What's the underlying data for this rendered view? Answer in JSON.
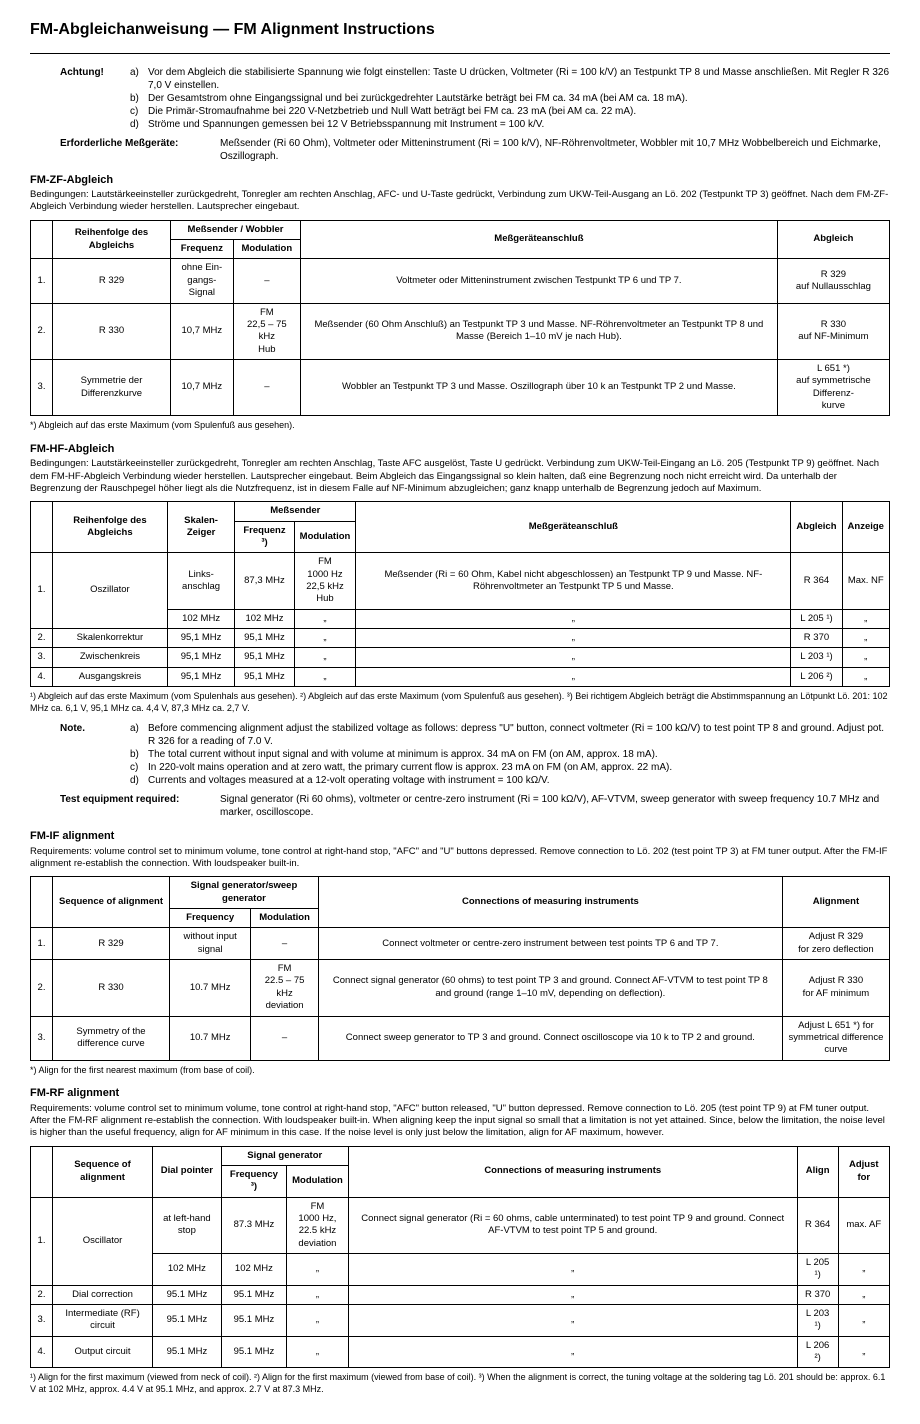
{
  "title": "FM-Abgleichanweisung — FM Alignment Instructions",
  "de": {
    "achtung_label": "Achtung!",
    "achtung": [
      "Vor dem Abgleich die stabilisierte Spannung wie folgt einstellen: Taste U drücken, Voltmeter (Ri = 100 k/V) an Testpunkt TP 8 und Masse anschließen. Mit Regler R 326 7,0 V einstellen.",
      "Der Gesamtstrom ohne Eingangssignal und bei zurückgedrehter Lautstärke beträgt bei FM ca. 34 mA (bei AM ca. 18 mA).",
      "Die Primär-Stromaufnahme bei 220 V-Netzbetrieb und Null Watt beträgt bei FM ca. 23 mA (bei AM ca. 22 mA).",
      "Ströme und Spannungen gemessen bei 12 V Betriebsspannung mit Instrument = 100 k/V."
    ],
    "equip_label": "Erforderliche Meßgeräte:",
    "equip": "Meßsender (Ri 60 Ohm), Voltmeter oder Mitteninstrument (Ri = 100 k/V), NF-Röhrenvoltmeter, Wobbler mit 10,7 MHz Wobbelbereich und Eichmarke, Oszillograph.",
    "zf_title": "FM-ZF-Abgleich",
    "zf_cond": "Bedingungen: Lautstärkeeinsteller zurückgedreht, Tonregler am rechten Anschlag, AFC- und U-Taste gedrückt, Verbindung zum UKW-Teil-Ausgang an Lö. 202 (Testpunkt TP 3) geöffnet. Nach dem FM-ZF-Abgleich Verbindung wieder herstellen. Lautsprecher eingebaut.",
    "zf_headers": {
      "seq": "Reihenfolge des Abgleichs",
      "gen": "Meßsender / Wobbler",
      "freq": "Frequenz",
      "mod": "Modulation",
      "conn": "Meßgeräteanschluß",
      "align": "Abgleich"
    },
    "zf_rows": [
      {
        "n": "1.",
        "comp": "R 329",
        "freq": "ohne Ein-\ngangs-Signal",
        "mod": "–",
        "conn": "Voltmeter oder Mitteninstrument zwischen Testpunkt TP 6 und TP 7.",
        "align": "R 329\nauf Nullausschlag"
      },
      {
        "n": "2.",
        "comp": "R 330",
        "freq": "10,7 MHz",
        "mod": "FM\n22,5 – 75 kHz\nHub",
        "conn": "Meßsender (60 Ohm Anschluß) an Testpunkt TP 3 und Masse. NF-Röhrenvoltmeter an Testpunkt TP 8 und Masse (Bereich 1–10 mV je nach Hub).",
        "align": "R 330\nauf NF-Minimum"
      },
      {
        "n": "3.",
        "comp": "Symmetrie der Differenzkurve",
        "freq": "10,7 MHz",
        "mod": "–",
        "conn": "Wobbler an Testpunkt TP 3 und Masse. Oszillograph über 10 k an Testpunkt TP 2 und Masse.",
        "align": "L 651 *)\nauf symmetrische Differenz-\nkurve"
      }
    ],
    "zf_foot": "*) Abgleich auf das erste Maximum (vom Spulenfuß aus gesehen).",
    "hf_title": "FM-HF-Abgleich",
    "hf_cond": "Bedingungen: Lautstärkeeinsteller zurückgedreht, Tonregler am rechten Anschlag, Taste AFC ausgelöst, Taste U gedrückt. Verbindung zum UKW-Teil-Eingang an Lö. 205 (Testpunkt TP 9) geöffnet. Nach dem FM-HF-Abgleich Verbindung wieder herstellen. Lautsprecher eingebaut. Beim Abgleich das Eingangssignal so klein halten, daß eine Begrenzung noch nicht erreicht wird. Da unterhalb der Begrenzung der Rauschpegel höher liegt als die Nutzfrequenz, ist in diesem Falle auf NF-Minimum abzugleichen; ganz knapp unterhalb de Begrenzung jedoch auf Maximum.",
    "hf_headers": {
      "seq": "Reihenfolge des Abgleichs",
      "dial": "Skalen-\nZeiger",
      "gen": "Meßsender",
      "freq": "Frequenz ³)",
      "mod": "Modulation",
      "conn": "Meßgeräteanschluß",
      "align": "Abgleich",
      "ind": "Anzeige"
    },
    "hf_rows": [
      {
        "n": "1.",
        "comp": "Oszillator",
        "dial": "Links-\nanschlag",
        "freq": "87,3 MHz",
        "mod": "FM\n1000 Hz\n22,5 kHz\nHub",
        "conn": "Meßsender (Ri = 60 Ohm, Kabel nicht abgeschlossen) an Testpunkt TP 9 und Masse. NF-Röhrenvoltmeter an Testpunkt TP 5 und Masse.",
        "align": "R 364",
        "ind": "Max. NF"
      },
      {
        "n": "",
        "comp": "",
        "dial": "102 MHz",
        "freq": "102 MHz",
        "mod": "„",
        "conn": "„",
        "align": "L 205 ¹)",
        "ind": "„"
      },
      {
        "n": "2.",
        "comp": "Skalenkorrektur",
        "dial": "95,1 MHz",
        "freq": "95,1 MHz",
        "mod": "„",
        "conn": "„",
        "align": "R 370",
        "ind": "„"
      },
      {
        "n": "3.",
        "comp": "Zwischenkreis",
        "dial": "95,1 MHz",
        "freq": "95,1 MHz",
        "mod": "„",
        "conn": "„",
        "align": "L 203 ¹)",
        "ind": "„"
      },
      {
        "n": "4.",
        "comp": "Ausgangskreis",
        "dial": "95,1 MHz",
        "freq": "95,1 MHz",
        "mod": "„",
        "conn": "„",
        "align": "L 206 ²)",
        "ind": "„"
      }
    ],
    "hf_foot": "¹) Abgleich auf das erste Maximum (vom Spulenhals aus gesehen). ²) Abgleich auf das erste Maximum (vom Spulenfuß aus gesehen). ³) Bei richtigem Abgleich beträgt die Abstimmspannung an Lötpunkt Lö. 201: 102 MHz ca. 6,1 V, 95,1 MHz ca. 4,4 V, 87,3 MHz ca. 2,7 V."
  },
  "en": {
    "note_label": "Note.",
    "note": [
      "Before commencing alignment adjust the stabilized voltage as follows: depress \"U\" button, connect voltmeter (Ri = 100 kΩ/V) to test point TP 8 and ground. Adjust pot. R 326 for a reading of 7.0 V.",
      "The total current without input signal and with volume at minimum is approx. 34 mA on FM (on AM, approx. 18 mA).",
      "In 220-volt mains operation and at zero watt, the primary current flow is approx. 23 mA on FM (on AM, approx. 22 mA).",
      "Currents and voltages measured at a 12-volt operating voltage with instrument = 100 kΩ/V."
    ],
    "equip_label": "Test equipment required:",
    "equip": "Signal generator (Ri 60 ohms), voltmeter or centre-zero instrument (Ri = 100 kΩ/V), AF-VTVM, sweep generator with sweep frequency 10.7 MHz and marker, oscilloscope.",
    "if_title": "FM-IF alignment",
    "if_cond": "Requirements: volume control set to minimum volume, tone control at right-hand stop, \"AFC\" and \"U\" buttons depressed. Remove connection to Lö. 202 (test point TP 3) at FM tuner output. After the FM-IF alignment re-establish the connection. With loudspeaker built-in.",
    "if_headers": {
      "seq": "Sequence of alignment",
      "gen": "Signal generator/sweep generator",
      "freq": "Frequency",
      "mod": "Modulation",
      "conn": "Connections of measuring instruments",
      "align": "Alignment"
    },
    "if_rows": [
      {
        "n": "1.",
        "comp": "R 329",
        "freq": "without input signal",
        "mod": "–",
        "conn": "Connect voltmeter or centre-zero instrument between test points TP 6 and TP 7.",
        "align": "Adjust R 329\nfor zero deflection"
      },
      {
        "n": "2.",
        "comp": "R 330",
        "freq": "10.7 MHz",
        "mod": "FM\n22.5 – 75 kHz\ndeviation",
        "conn": "Connect signal generator (60 ohms) to test point TP 3 and ground. Connect AF-VTVM to test point TP 8 and ground (range 1–10 mV, depending on deflection).",
        "align": "Adjust R 330\nfor AF minimum"
      },
      {
        "n": "3.",
        "comp": "Symmetry of the difference curve",
        "freq": "10.7 MHz",
        "mod": "–",
        "conn": "Connect sweep generator to TP 3 and ground. Connect oscilloscope via 10 k to TP 2 and ground.",
        "align": "Adjust L 651 *) for\nsymmetrical difference curve"
      }
    ],
    "if_foot": "*) Align for the first nearest maximum (from base of coil).",
    "rf_title": "FM-RF alignment",
    "rf_cond": "Requirements: volume control set to minimum volume, tone control at right-hand stop, \"AFC\" button released, \"U\" button depressed. Remove connection to Lö. 205 (test point TP 9) at FM tuner output. After the FM-RF alignment re-establish the connection. With loudspeaker built-in. When aligning keep the input signal so small that a limitation is not yet attained. Since, below the limitation, the noise level is higher than the useful frequency, align for AF minimum in this case. If the noise level is only just below the limitation, align for AF maximum, however.",
    "rf_headers": {
      "seq": "Sequence of alignment",
      "dial": "Dial pointer",
      "gen": "Signal generator",
      "freq": "Frequency ³)",
      "mod": "Modulation",
      "conn": "Connections of measuring instruments",
      "align": "Align",
      "ind": "Adjust for"
    },
    "rf_rows": [
      {
        "n": "1.",
        "comp": "Oscillator",
        "dial": "at left-hand stop",
        "freq": "87.3 MHz",
        "mod": "FM\n1000 Hz,\n22.5 kHz\ndeviation",
        "conn": "Connect signal generator (Ri = 60 ohms, cable unterminated) to test point TP 9 and ground. Connect AF-VTVM to test point TP 5 and ground.",
        "align": "R 364",
        "ind": "max. AF"
      },
      {
        "n": "",
        "comp": "",
        "dial": "102 MHz",
        "freq": "102 MHz",
        "mod": "„",
        "conn": "„",
        "align": "L 205 ¹)",
        "ind": "„"
      },
      {
        "n": "2.",
        "comp": "Dial correction",
        "dial": "95.1 MHz",
        "freq": "95.1 MHz",
        "mod": "„",
        "conn": "„",
        "align": "R 370",
        "ind": "„"
      },
      {
        "n": "3.",
        "comp": "Intermediate (RF) circuit",
        "dial": "95.1 MHz",
        "freq": "95.1 MHz",
        "mod": "„",
        "conn": "„",
        "align": "L 203 ¹)",
        "ind": "„"
      },
      {
        "n": "4.",
        "comp": "Output circuit",
        "dial": "95.1 MHz",
        "freq": "95.1 MHz",
        "mod": "„",
        "conn": "„",
        "align": "L 206 ²)",
        "ind": "„"
      }
    ],
    "rf_foot": "¹) Align for the first maximum (viewed from neck of coil). ²) Align for the first maximum (viewed from base of coil). ³) When the alignment is correct, the tuning voltage at the soldering tag Lö. 201 should be: approx. 6.1 V at 102 MHz, approx. 4.4 V at 95.1 MHz, and approx. 2.7 V at 87.3 MHz."
  },
  "letters": [
    "a)",
    "b)",
    "c)",
    "d)"
  ]
}
